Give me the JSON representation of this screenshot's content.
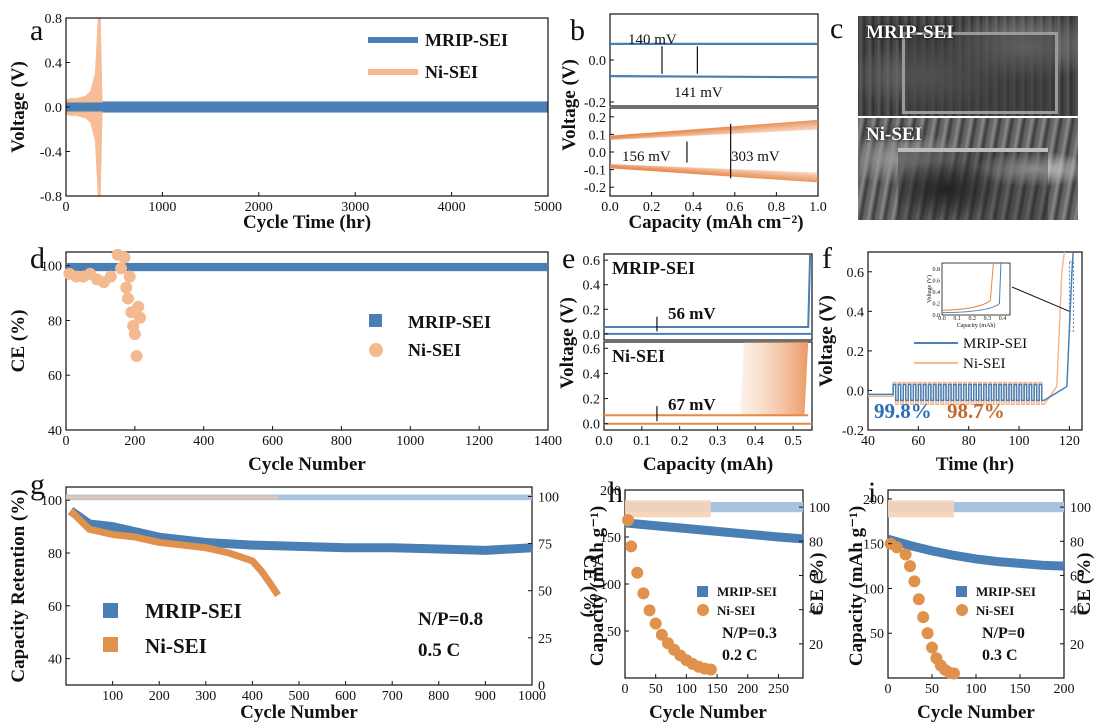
{
  "figure": {
    "letters": [
      "a",
      "b",
      "c",
      "d",
      "e",
      "f",
      "g",
      "h",
      "i"
    ],
    "series_names": {
      "mrip": "MRIP-SEI",
      "ni": "Ni-SEI"
    },
    "colors": {
      "mrip": "#4a7fb5",
      "mrip_light": "#a7c3e0",
      "ni": "#f5b990",
      "ni_dark": "#e0924c",
      "ni_line": "#e8874a"
    }
  },
  "chart_data": [
    {
      "id": "a",
      "type": "line",
      "xlabel": "Cycle Time (hr)",
      "ylabel": "Voltage (V)",
      "xlim": [
        0,
        5000
      ],
      "ylim": [
        -0.8,
        0.8
      ],
      "xticks": [
        "0",
        "1000",
        "2000",
        "3000",
        "4000",
        "5000"
      ],
      "yticks": [
        "0.8",
        "0.4",
        "0.0",
        "-0.4",
        "-0.8"
      ],
      "series": [
        {
          "name": "MRIP-SEI",
          "x": [
            0,
            5000
          ],
          "y_band": [
            -0.05,
            0.05
          ]
        },
        {
          "name": "Ni-SEI",
          "x": [
            0,
            50,
            100,
            150,
            200,
            250,
            300,
            330,
            360,
            380
          ],
          "y_band_max": [
            0.07,
            0.08,
            0.08,
            0.09,
            0.1,
            0.14,
            0.3,
            0.8,
            0.8,
            0.0
          ]
        }
      ]
    },
    {
      "id": "b",
      "type": "line",
      "xlabel": "Capacity (mAh cm⁻²)",
      "ylabel": "Voltage (V)",
      "xlim": [
        0,
        1.0
      ],
      "xticks": [
        "0.0",
        "0.2",
        "0.4",
        "0.6",
        "0.8",
        "1.0"
      ],
      "top": {
        "ylim": [
          -0.2,
          0.2
        ],
        "yticks": [
          "0.0",
          "-0.2"
        ],
        "series": [
          {
            "name": "MRIP-SEI",
            "x": [
              0,
              1.0
            ],
            "plating": [
              0.07,
              0.07
            ],
            "stripping": [
              -0.07,
              -0.075
            ]
          }
        ],
        "annotations": [
          "140 mV",
          "141 mV"
        ]
      },
      "bottom": {
        "ylim": [
          -0.25,
          0.25
        ],
        "yticks": [
          "0.2",
          "0.1",
          "0.0",
          "-0.1",
          "-0.2"
        ],
        "series": [
          {
            "name": "Ni-SEI",
            "x": [
              0,
              1.0
            ],
            "plating_start": [
              0.07,
              0.18
            ],
            "stripping_start": [
              -0.07,
              -0.17
            ]
          }
        ],
        "annotations": [
          "156 mV",
          "303 mV"
        ]
      }
    },
    {
      "id": "d",
      "type": "scatter",
      "xlabel": "Cycle Number",
      "ylabel": "CE (%)",
      "xlim": [
        0,
        1400
      ],
      "ylim": [
        40,
        105
      ],
      "xticks": [
        "0",
        "200",
        "400",
        "600",
        "800",
        "1000",
        "1200",
        "1400"
      ],
      "yticks": [
        "40",
        "60",
        "80",
        "100"
      ],
      "series": [
        {
          "name": "MRIP-SEI",
          "x": [
            0,
            1400
          ],
          "y": [
            99.7,
            99.7
          ]
        },
        {
          "name": "Ni-SEI",
          "x": [
            10,
            30,
            50,
            70,
            90,
            110,
            130,
            150,
            160,
            170,
            175,
            180,
            185,
            190,
            195,
            200,
            205,
            210,
            215
          ],
          "y": [
            97,
            96,
            96,
            97,
            95,
            94,
            96,
            104,
            99,
            103,
            92,
            88,
            96,
            83,
            78,
            75,
            67,
            85,
            81
          ]
        }
      ]
    },
    {
      "id": "e",
      "type": "line",
      "xlabel": "Capacity (mAh)",
      "ylabel": "Voltage (V)",
      "xlim": [
        0,
        0.55
      ],
      "xticks": [
        "0.0",
        "0.1",
        "0.2",
        "0.3",
        "0.4",
        "0.5"
      ],
      "top": {
        "ylim": [
          -0.05,
          0.65
        ],
        "yticks": [
          "0.6",
          "0.4",
          "0.2",
          "0.0"
        ],
        "series": [
          {
            "name": "MRIP-SEI",
            "plateau": 0.056,
            "end_capacity": 0.545
          }
        ],
        "annotation": "56 mV"
      },
      "bottom": {
        "ylim": [
          -0.05,
          0.65
        ],
        "yticks": [
          "0.6",
          "0.4",
          "0.2",
          "0.0"
        ],
        "series": [
          {
            "name": "Ni-SEI",
            "plateau": 0.067,
            "end_capacities": [
              0.37,
              0.54
            ]
          }
        ],
        "annotation": "67 mV"
      }
    },
    {
      "id": "f",
      "type": "line",
      "xlabel": "Time (hr)",
      "ylabel": "Voltage (V)",
      "xlim": [
        40,
        125
      ],
      "ylim": [
        -0.2,
        0.7
      ],
      "xticks": [
        "40",
        "60",
        "80",
        "100",
        "120"
      ],
      "yticks": [
        "0.6",
        "0.4",
        "0.2",
        "0.0",
        "-0.2"
      ],
      "annotations": [
        "99.8%",
        "98.7%"
      ],
      "inset": {
        "xlabel": "Capacity (mAh)",
        "ylabel": "Voltage (V)",
        "xticks": [
          "0.0",
          "0.1",
          "0.2",
          "0.3",
          "0.4"
        ],
        "yticks": [
          "0.8",
          "0.6",
          "0.4",
          "0.2",
          "0.0"
        ]
      }
    },
    {
      "id": "g",
      "type": "scatter",
      "xlabel": "Cycle Number",
      "ylabel": "Capacity Retention (%)",
      "y2label": "CE (%)",
      "xlim": [
        0,
        1000
      ],
      "ylim": [
        30,
        105
      ],
      "y2lim": [
        0,
        105
      ],
      "xticks": [
        "100",
        "200",
        "300",
        "400",
        "500",
        "600",
        "700",
        "800",
        "900",
        "1000"
      ],
      "yticks": [
        "100",
        "80",
        "60",
        "40"
      ],
      "y2ticks": [
        "100",
        "75",
        "50",
        "25",
        "0"
      ],
      "annotations": [
        "N/P=0.8",
        "0.5 C"
      ],
      "series": [
        {
          "name": "MRIP-SEI",
          "x": [
            10,
            50,
            100,
            150,
            200,
            300,
            400,
            500,
            600,
            700,
            800,
            900,
            1000
          ],
          "y": [
            96,
            91,
            90,
            88,
            86,
            84,
            83,
            82.5,
            82,
            82,
            81.5,
            81,
            82
          ]
        },
        {
          "name": "Ni-SEI",
          "x": [
            10,
            50,
            100,
            150,
            200,
            250,
            300,
            350,
            400,
            420,
            440,
            455
          ],
          "y": [
            96,
            89,
            87,
            86,
            84,
            83,
            82,
            80,
            77,
            73,
            68,
            64
          ]
        }
      ]
    },
    {
      "id": "h",
      "type": "scatter",
      "xlabel": "Cycle Number",
      "ylabel": "Capacity (mAh g⁻¹)",
      "y2label": "CE (%)",
      "xlim": [
        0,
        290
      ],
      "ylim": [
        0,
        200
      ],
      "y2lim": [
        0,
        110
      ],
      "xticks": [
        "0",
        "50",
        "100",
        "150",
        "200",
        "250"
      ],
      "yticks": [
        "200",
        "150",
        "100",
        "50"
      ],
      "y2ticks": [
        "100",
        "80",
        "60",
        "40",
        "20"
      ],
      "annotations": [
        "N/P=0.3",
        "0.2 C"
      ],
      "series": [
        {
          "name": "MRIP-SEI",
          "x": [
            0,
            50,
            100,
            150,
            200,
            250,
            290
          ],
          "y": [
            165,
            162,
            159,
            156,
            153,
            150,
            148
          ]
        },
        {
          "name": "Ni-SEI",
          "x": [
            5,
            10,
            20,
            30,
            40,
            50,
            60,
            70,
            80,
            90,
            100,
            110,
            120,
            130,
            140
          ],
          "y": [
            168,
            140,
            112,
            90,
            72,
            58,
            46,
            37,
            30,
            24,
            19,
            15,
            12,
            10,
            9
          ]
        }
      ]
    },
    {
      "id": "i",
      "type": "scatter",
      "xlabel": "Cycle Number",
      "ylabel": "Capacity (mAh g⁻¹)",
      "y2label": "CE (%)",
      "xlim": [
        0,
        200
      ],
      "ylim": [
        0,
        210
      ],
      "y2lim": [
        0,
        110
      ],
      "xticks": [
        "0",
        "50",
        "100",
        "150",
        "200"
      ],
      "yticks": [
        "200",
        "150",
        "100",
        "50"
      ],
      "y2ticks": [
        "100",
        "80",
        "60",
        "40",
        "20"
      ],
      "annotations": [
        "N/P=0",
        "0.3 C"
      ],
      "series": [
        {
          "name": "MRIP-SEI",
          "x": [
            0,
            25,
            50,
            75,
            100,
            125,
            150,
            175,
            200
          ],
          "y": [
            155,
            148,
            142,
            137,
            133,
            130,
            128,
            126,
            125
          ]
        },
        {
          "name": "Ni-SEI",
          "x": [
            3,
            10,
            20,
            25,
            30,
            35,
            40,
            45,
            50,
            55,
            60,
            65,
            70,
            75
          ],
          "y": [
            150,
            146,
            138,
            125,
            108,
            88,
            68,
            50,
            34,
            22,
            14,
            9,
            6,
            5
          ]
        }
      ]
    }
  ],
  "sem_images": [
    {
      "label": "MRIP-SEI"
    },
    {
      "label": "Ni-SEI"
    }
  ]
}
